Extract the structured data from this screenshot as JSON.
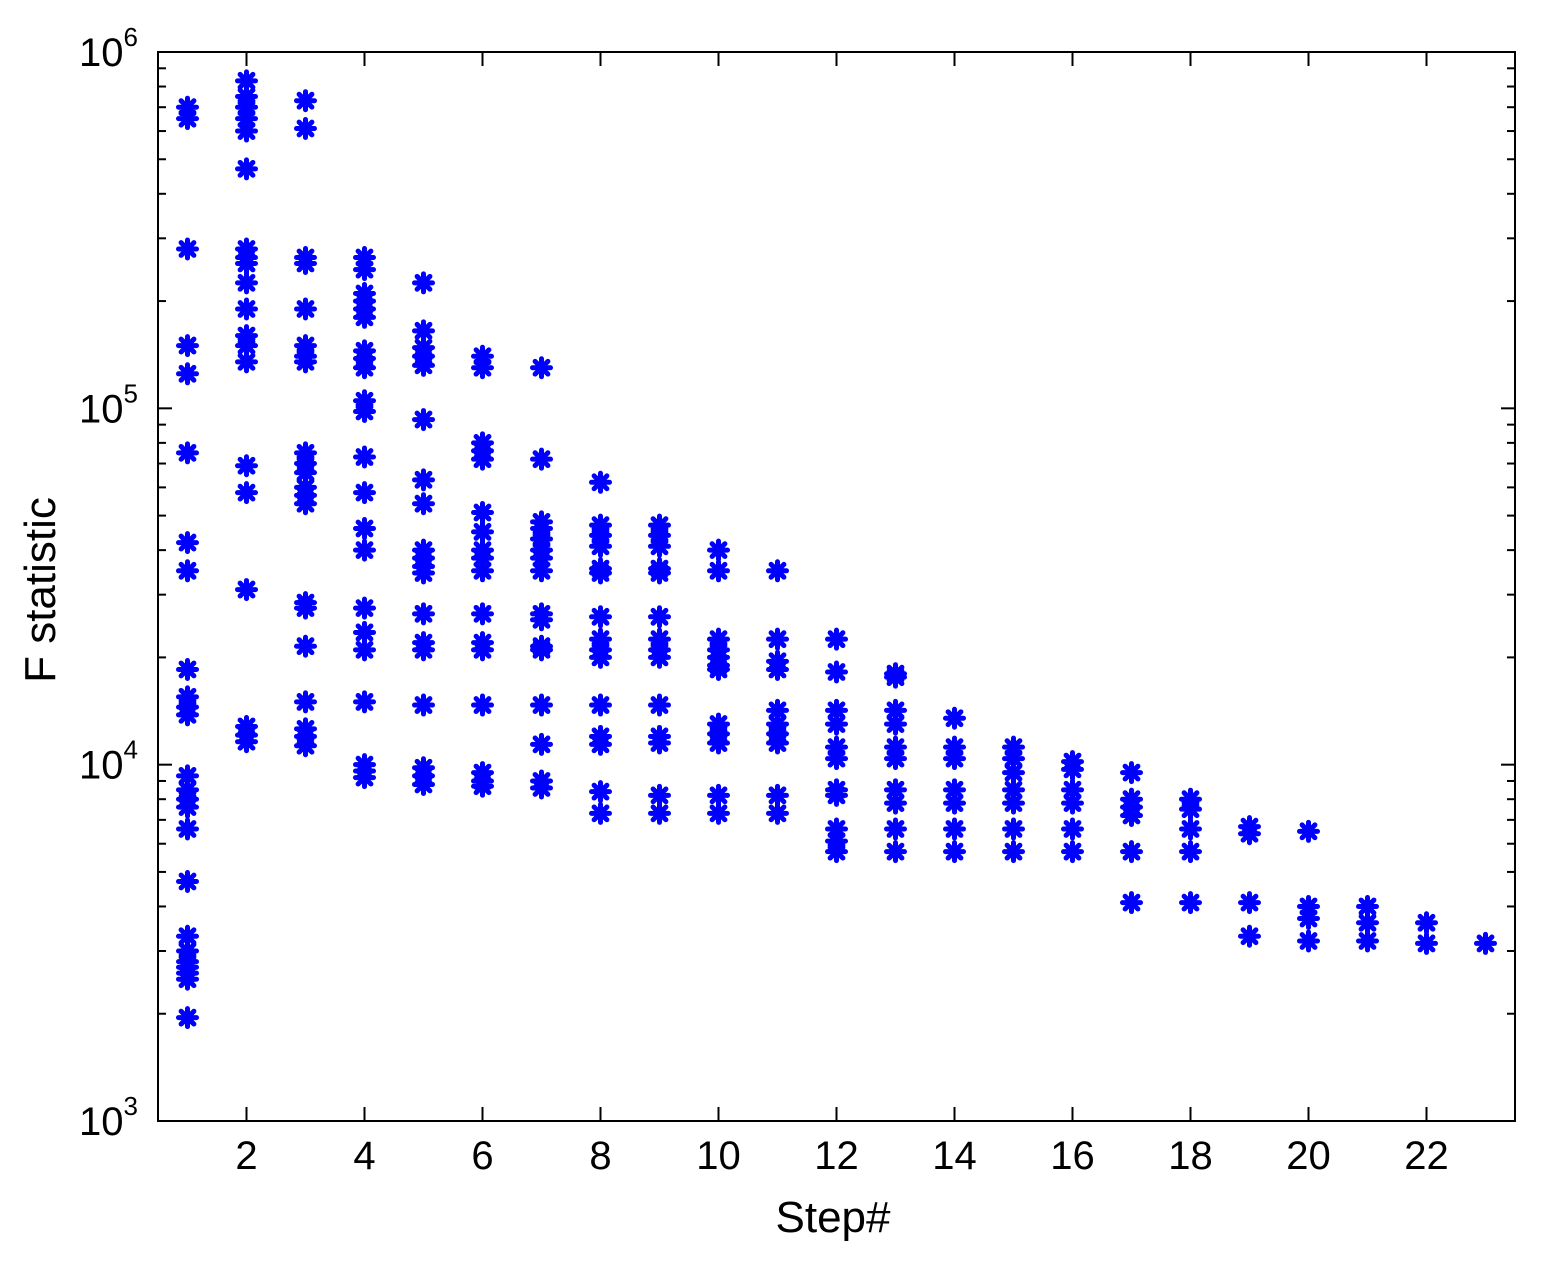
{
  "chart_data": {
    "type": "scatter",
    "title": "",
    "xlabel": "Step#",
    "ylabel": "F statistic",
    "xlim": [
      0.5,
      23.5
    ],
    "ylim": [
      1000,
      1000000
    ],
    "y_scale": "log",
    "x_ticks": [
      2,
      4,
      6,
      8,
      10,
      12,
      14,
      16,
      18,
      20,
      22
    ],
    "y_ticks": [
      {
        "base": "10",
        "exp": "3",
        "value": 1000
      },
      {
        "base": "10",
        "exp": "4",
        "value": 10000
      },
      {
        "base": "10",
        "exp": "5",
        "value": 100000
      },
      {
        "base": "10",
        "exp": "6",
        "value": 1000000
      }
    ],
    "grid": false,
    "marker": "asterisk",
    "color": "#0000ff",
    "columns": [
      {
        "x": 1,
        "y": [
          700000,
          650000,
          280000,
          150000,
          125000,
          75000,
          42000,
          35000,
          18500,
          15500,
          14500,
          13800,
          9300,
          8500,
          8000,
          7600,
          6600,
          4700,
          3300,
          3000,
          2800,
          2700,
          2600,
          2500,
          1950
        ]
      },
      {
        "x": 2,
        "y": [
          830000,
          750000,
          700000,
          650000,
          600000,
          470000,
          280000,
          265000,
          255000,
          225000,
          190000,
          160000,
          150000,
          135000,
          69000,
          58000,
          31000,
          12800,
          12100,
          11600
        ]
      },
      {
        "x": 3,
        "y": [
          730000,
          610000,
          265000,
          255000,
          190000,
          150000,
          140000,
          135000,
          75000,
          70000,
          66000,
          60000,
          57000,
          54000,
          28500,
          27500,
          21500,
          15000,
          12600,
          12000,
          11300
        ]
      },
      {
        "x": 4,
        "y": [
          265000,
          245000,
          210000,
          200000,
          190000,
          180000,
          145000,
          138000,
          130000,
          105000,
          98000,
          73000,
          58000,
          46000,
          40000,
          27500,
          23500,
          21000,
          15000,
          10000,
          9600,
          9200
        ]
      },
      {
        "x": 5,
        "y": [
          225000,
          165000,
          148000,
          140000,
          132000,
          93000,
          63000,
          54000,
          40000,
          38000,
          36000,
          34500,
          26500,
          22000,
          21000,
          14700,
          9800,
          9300,
          8800
        ]
      },
      {
        "x": 6,
        "y": [
          140000,
          130000,
          80000,
          76000,
          72000,
          51000,
          45000,
          40000,
          38000,
          35000,
          26500,
          22000,
          21000,
          14700,
          9500,
          9000,
          8700
        ]
      },
      {
        "x": 7,
        "y": [
          130000,
          72000,
          48000,
          46000,
          43000,
          40000,
          38000,
          35000,
          26500,
          25500,
          21500,
          21000,
          14700,
          11400,
          9000,
          8600
        ]
      },
      {
        "x": 8,
        "y": [
          62000,
          47000,
          44000,
          41000,
          35500,
          34500,
          26000,
          22500,
          21000,
          20000,
          14700,
          12000,
          11400,
          8400,
          7300
        ]
      },
      {
        "x": 9,
        "y": [
          47000,
          44000,
          41000,
          35500,
          34500,
          26000,
          22500,
          21000,
          20000,
          14700,
          12000,
          11500,
          8200,
          7300
        ]
      },
      {
        "x": 10,
        "y": [
          40000,
          35000,
          22500,
          21000,
          20000,
          19000,
          18500,
          13000,
          12200,
          11500,
          8200,
          7300
        ]
      },
      {
        "x": 11,
        "y": [
          35000,
          22500,
          19500,
          18500,
          14200,
          13000,
          12200,
          11500,
          8200,
          7300
        ]
      },
      {
        "x": 12,
        "y": [
          22500,
          18200,
          14200,
          13000,
          11200,
          10400,
          8500,
          8200,
          6600,
          6100,
          5700
        ]
      },
      {
        "x": 13,
        "y": [
          18000,
          17600,
          14200,
          13000,
          11200,
          10400,
          8500,
          7800,
          6600,
          5700
        ]
      },
      {
        "x": 14,
        "y": [
          13500,
          11200,
          10400,
          8500,
          7800,
          6600,
          5700
        ]
      },
      {
        "x": 15,
        "y": [
          11200,
          10400,
          9500,
          8500,
          7800,
          6600,
          5700
        ]
      },
      {
        "x": 16,
        "y": [
          10200,
          9700,
          8500,
          7800,
          6600,
          5700
        ]
      },
      {
        "x": 17,
        "y": [
          9500,
          8000,
          7600,
          7200,
          5700,
          4100
        ]
      },
      {
        "x": 18,
        "y": [
          8000,
          7500,
          6600,
          5700,
          4100
        ]
      },
      {
        "x": 19,
        "y": [
          6700,
          6400,
          4100,
          3300
        ]
      },
      {
        "x": 20,
        "y": [
          6500,
          4000,
          3700,
          3200
        ]
      },
      {
        "x": 21,
        "y": [
          4000,
          3600,
          3200
        ]
      },
      {
        "x": 22,
        "y": [
          3600,
          3150
        ]
      },
      {
        "x": 23,
        "y": [
          3150
        ]
      }
    ]
  }
}
